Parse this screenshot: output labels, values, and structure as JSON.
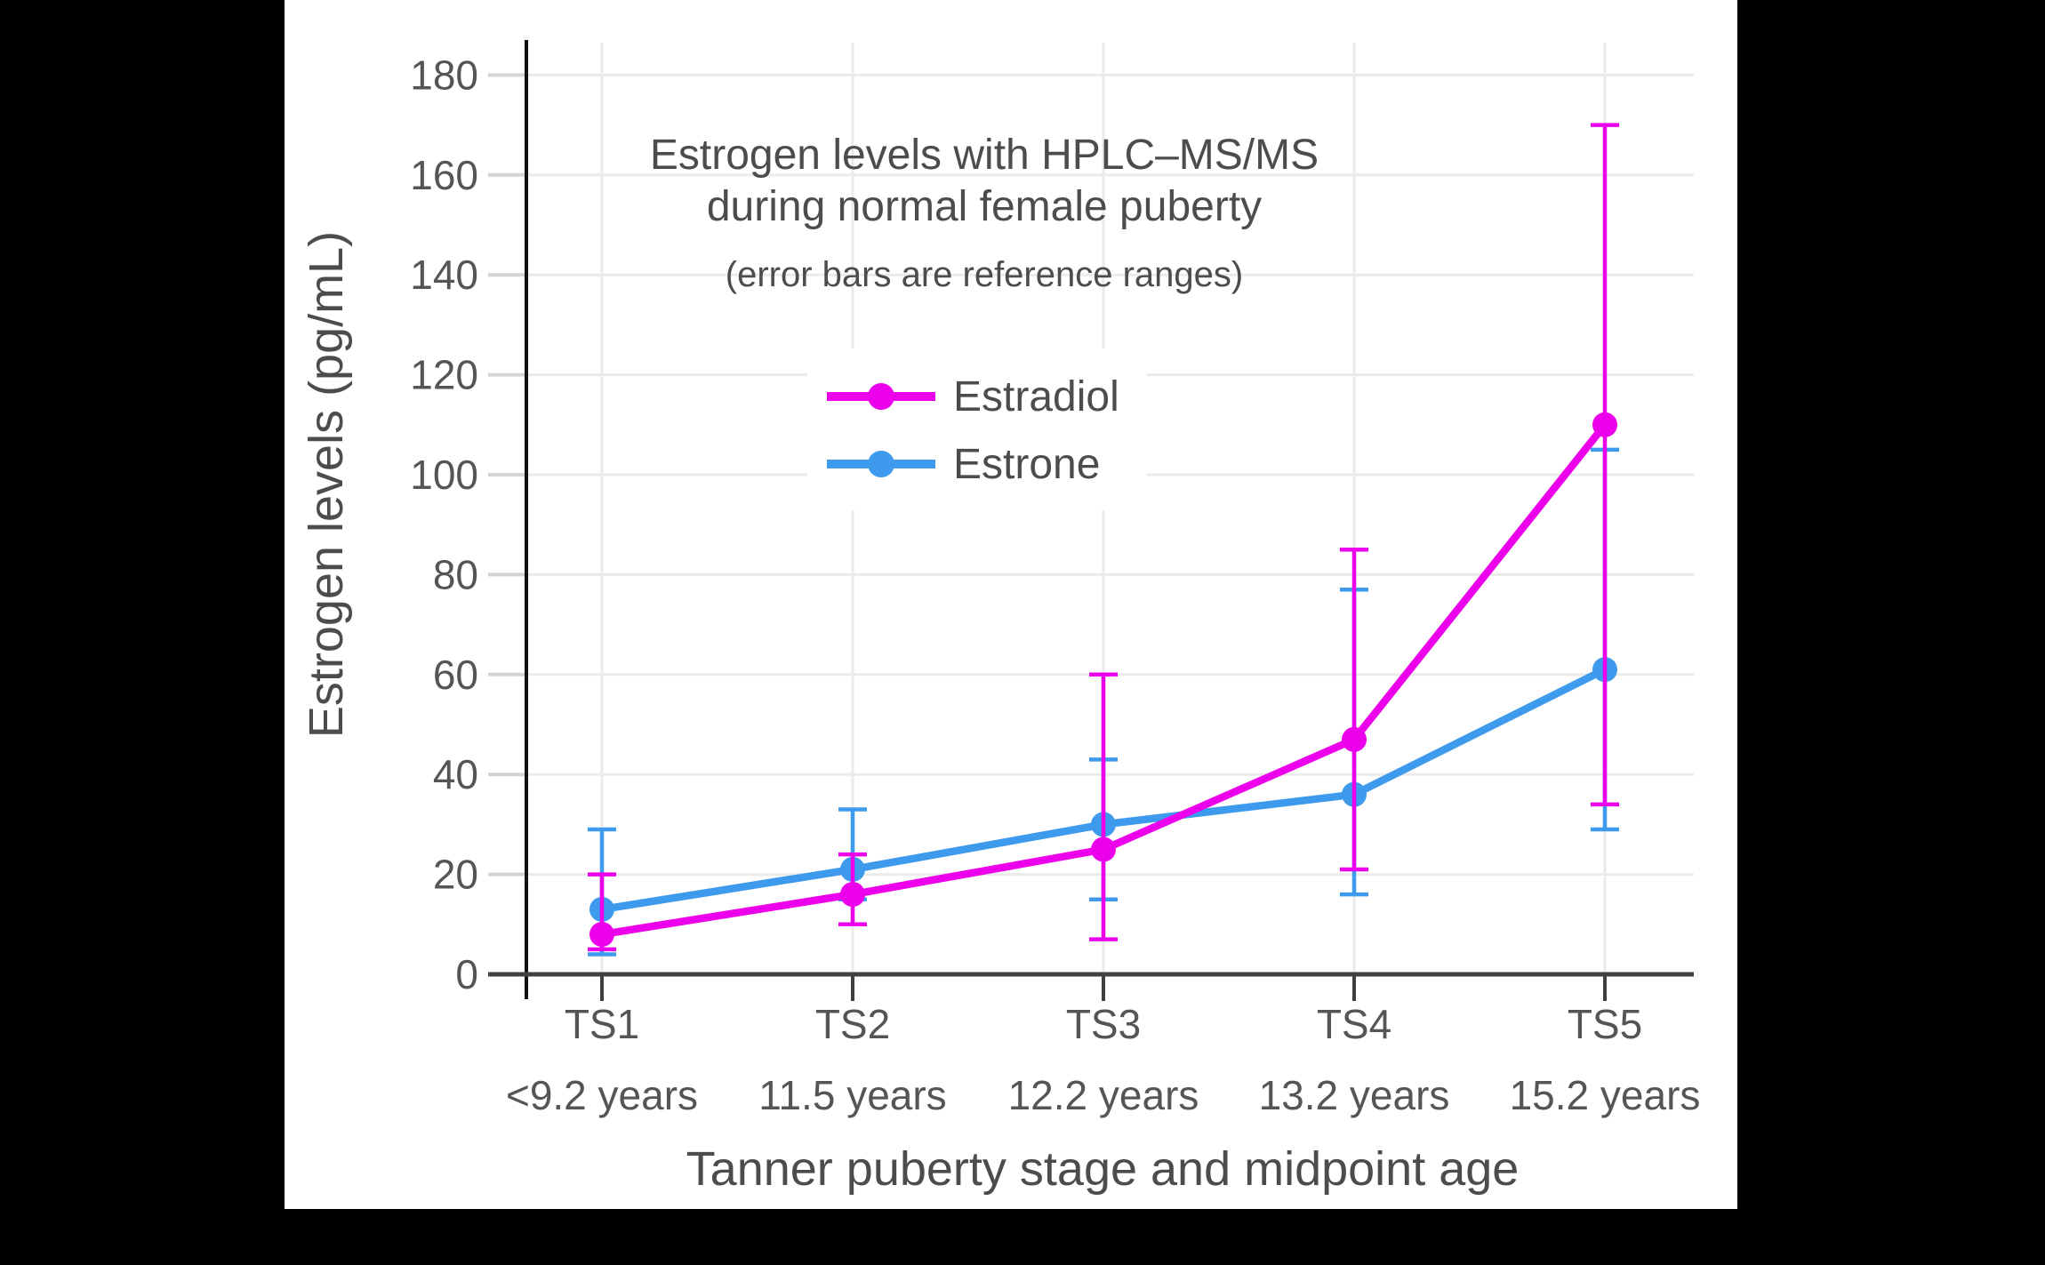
{
  "title": {
    "line1": "Estrogen levels with HPLC–MS/MS",
    "line2": "during normal female puberty",
    "subtitle": "(error bars are reference ranges)"
  },
  "chart_data": {
    "type": "line",
    "title": "Estrogen levels with HPLC–MS/MS during normal female puberty",
    "subtitle": "(error bars are reference ranges)",
    "xlabel": "Tanner puberty stage and midpoint age",
    "ylabel": "Estrogen levels (pg/mL)",
    "categories": [
      "TS1",
      "TS2",
      "TS3",
      "TS4",
      "TS5"
    ],
    "category_sublabels": [
      "<9.2 years",
      "11.5 years",
      "12.2 years",
      "13.2 years",
      "15.2 years"
    ],
    "yticks": [
      0,
      20,
      40,
      60,
      80,
      100,
      120,
      140,
      160,
      180
    ],
    "ylim": [
      0,
      186
    ],
    "grid": true,
    "legend_position": "inside-upper-left",
    "error_bar_meaning": "reference ranges",
    "series": [
      {
        "name": "Estradiol",
        "color": "#EC00EC",
        "values": [
          8,
          16,
          25,
          47,
          110
        ],
        "error_low": [
          5,
          10,
          7,
          21,
          34
        ],
        "error_high": [
          20,
          24,
          60,
          85,
          170
        ]
      },
      {
        "name": "Estrone",
        "color": "#3E9AEC",
        "values": [
          13,
          21,
          30,
          36,
          61
        ],
        "error_low": [
          4,
          15,
          15,
          16,
          29
        ],
        "error_high": [
          29,
          33,
          43,
          77,
          105
        ]
      }
    ]
  }
}
